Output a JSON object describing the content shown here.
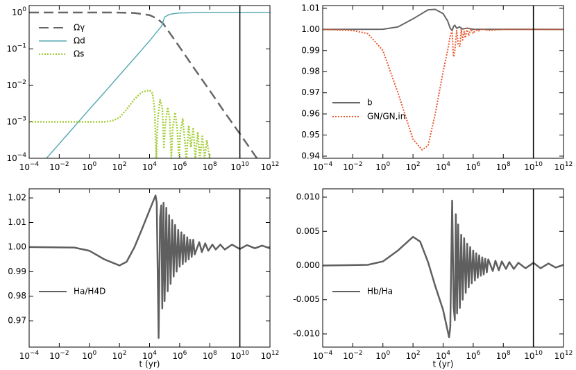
{
  "chart_data": [
    {
      "type": "line",
      "xlog": true,
      "ylog": true,
      "legend": "upper left",
      "vline": 10000000000,
      "xlim": [
        0.0001,
        1000000000000
      ],
      "ylim": [
        0.0001,
        1.55
      ],
      "xticks": [
        {
          "value": 0.0001,
          "label": "10",
          "power": "−4"
        },
        {
          "value": 0.01,
          "label": "10",
          "power": "−2"
        },
        {
          "value": 1,
          "label": "10",
          "power": "0"
        },
        {
          "value": 100,
          "label": "10",
          "power": "2"
        },
        {
          "value": 10000,
          "label": "10",
          "power": "4"
        },
        {
          "value": 1000000,
          "label": "10",
          "power": "6"
        },
        {
          "value": 100000000,
          "label": "10",
          "power": "8"
        },
        {
          "value": 10000000000,
          "label": "10",
          "power": "10"
        },
        {
          "value": 1000000000000,
          "label": "10",
          "power": "12"
        }
      ],
      "yticks": [
        {
          "value": 0.0001,
          "label": "10",
          "power": "−4"
        },
        {
          "value": 0.001,
          "label": "10",
          "power": "−3"
        },
        {
          "value": 0.01,
          "label": "10",
          "power": "−2"
        },
        {
          "value": 0.1,
          "label": "10",
          "power": "−1"
        },
        {
          "value": 1,
          "label": "10",
          "power": "0"
        }
      ],
      "series": [
        {
          "name": "Ωγ",
          "color": "#666666",
          "linestyle": "dashed",
          "linewidth": 2.5,
          "x": [
            0.0001,
            10,
            100,
            1000,
            10000,
            31600,
            79400,
            1000000,
            10000000,
            100000000,
            1000000000,
            10000000000,
            100000000000,
            316000000000
          ],
          "values": [
            1,
            1,
            0.995,
            0.97,
            0.85,
            0.68,
            0.5,
            0.112,
            0.028,
            0.0072,
            0.0018,
            0.00047,
            0.00012,
            6e-05
          ]
        },
        {
          "name": "Ωd",
          "color": "#5aacb4",
          "linestyle": "solid",
          "linewidth": 1.5,
          "x": [
            0.0001,
            0.001,
            0.01,
            0.1,
            1,
            10,
            100,
            1000,
            10000,
            31600,
            63000,
            100000,
            200000,
            400000,
            1000000,
            10000000,
            100000000,
            1000000000000
          ],
          "values": [
            2.9e-05,
            8.5e-05,
            0.00025,
            0.00074,
            0.0022,
            0.0064,
            0.019,
            0.056,
            0.166,
            0.3,
            0.42,
            0.75,
            0.88,
            0.93,
            0.97,
            0.99,
            1,
            1
          ]
        },
        {
          "name": "Ωs",
          "color": "#a5cf3a",
          "linestyle": "dotted",
          "linewidth": 2.5,
          "x": [
            0.0001,
            10,
            30,
            100,
            300,
            1000,
            3000,
            10000,
            16000,
            22000,
            28000,
            35000,
            50000,
            70000,
            90000,
            110000,
            160000,
            220000,
            280000,
            350000,
            500000,
            700000,
            900000,
            1100000,
            1600000,
            2200000,
            2800000,
            4000000,
            5600000,
            8000000,
            11000000,
            16000000,
            22000000,
            32000000,
            45000000,
            64000000,
            100000000
          ],
          "values": [
            0.001,
            0.001,
            0.00105,
            0.0013,
            0.0022,
            0.0042,
            0.0065,
            0.0074,
            0.006,
            0.002,
            0.0001,
            0.0012,
            0.004,
            0.0025,
            0.0002,
            0.0008,
            0.0025,
            0.0012,
            0.0001,
            0.0007,
            0.0018,
            0.0006,
            0.0001,
            0.0005,
            0.0012,
            0.0003,
            0.0001,
            0.0008,
            0.0002,
            0.0007,
            0.0001,
            0.0005,
            0.0001,
            0.0004,
            0.0001,
            0.0003,
            0.0001
          ]
        }
      ]
    },
    {
      "type": "line",
      "xlog": true,
      "ylog": false,
      "legend": "lower left",
      "vline": 10000000000,
      "xlim": [
        0.0001,
        1000000000000
      ],
      "ylim": [
        0.939,
        1.0113
      ],
      "xticks": [
        {
          "value": 0.0001,
          "label": "10",
          "power": "−4"
        },
        {
          "value": 0.01,
          "label": "10",
          "power": "−2"
        },
        {
          "value": 1,
          "label": "10",
          "power": "0"
        },
        {
          "value": 100,
          "label": "10",
          "power": "2"
        },
        {
          "value": 10000,
          "label": "10",
          "power": "4"
        },
        {
          "value": 1000000,
          "label": "10",
          "power": "6"
        },
        {
          "value": 100000000,
          "label": "10",
          "power": "8"
        },
        {
          "value": 10000000000,
          "label": "10",
          "power": "10"
        },
        {
          "value": 1000000000000,
          "label": "10",
          "power": "12"
        }
      ],
      "yticks": [
        0.94,
        0.95,
        0.96,
        0.97,
        0.98,
        0.99,
        {
          "value": 1,
          "label": "1.00"
        },
        1.01
      ],
      "series": [
        {
          "name": "b",
          "color": "#666666",
          "linestyle": "solid",
          "linewidth": 2,
          "x": [
            0.0001,
            1,
            10,
            100,
            1000,
            3000,
            10000,
            20000,
            30000,
            40000,
            50000,
            60000,
            80000,
            120000,
            200000,
            400000,
            1000000,
            1000000000000
          ],
          "values": [
            1,
            1.0001,
            1.0012,
            1.005,
            1.0093,
            1.0095,
            1.0075,
            1.004,
            1.0005,
            0.9995,
            1.0015,
            1.002,
            1.0005,
            1.0012,
            1.0002,
            1.0006,
            1.0001,
            1
          ]
        },
        {
          "name": "GN/GN,in",
          "color": "#e9572b",
          "linestyle": "dotted",
          "linewidth": 2,
          "x": [
            0.0001,
            0.01,
            0.1,
            1,
            10,
            100,
            400,
            1000,
            3000,
            10000,
            20000,
            30000,
            40000,
            45000,
            50000,
            60000,
            80000,
            100000,
            130000,
            160000,
            200000,
            250000,
            300000,
            400000,
            500000,
            700000,
            1000000,
            1500000,
            2000000,
            4000000,
            10000000,
            100000000,
            1000000000000
          ],
          "values": [
            1,
            0.9995,
            0.998,
            0.99,
            0.97,
            0.948,
            0.943,
            0.945,
            0.96,
            0.98,
            0.99,
            0.997,
            0.9995,
            0.991,
            0.987,
            0.99,
            0.9995,
            0.993,
            0.992,
            1,
            0.995,
            0.999,
            0.996,
            1.0005,
            0.997,
            1.0003,
            0.998,
            1.0003,
            0.999,
            1.0002,
            0.9995,
            1,
            1
          ]
        }
      ]
    },
    {
      "type": "line",
      "xlog": true,
      "ylog": false,
      "legend": "lower left",
      "vline": 10000000000,
      "xlabel": "t (yr)",
      "xlim": [
        0.0001,
        1000000000000
      ],
      "ylim": [
        0.9593,
        1.0237
      ],
      "xticks": [
        {
          "value": 0.0001,
          "label": "10",
          "power": "−4"
        },
        {
          "value": 0.01,
          "label": "10",
          "power": "−2"
        },
        {
          "value": 1,
          "label": "10",
          "power": "0"
        },
        {
          "value": 100,
          "label": "10",
          "power": "2"
        },
        {
          "value": 10000,
          "label": "10",
          "power": "4"
        },
        {
          "value": 1000000,
          "label": "10",
          "power": "6"
        },
        {
          "value": 100000000,
          "label": "10",
          "power": "8"
        },
        {
          "value": 10000000000,
          "label": "10",
          "power": "10"
        },
        {
          "value": 1000000000000,
          "label": "10",
          "power": "12"
        }
      ],
      "yticks": [
        0.97,
        0.98,
        0.99,
        {
          "value": 1,
          "label": "1.00"
        },
        1.01,
        1.02
      ],
      "series": [
        {
          "name": "Ha/H4D",
          "color": "#5f5f5f",
          "linestyle": "solid",
          "linewidth": 2.5,
          "x": [
            0.0001,
            0.1,
            1,
            10,
            100,
            300,
            1000,
            3000,
            10000,
            25000,
            30000,
            40000,
            50000,
            60000,
            70000,
            85000,
            100000,
            130000,
            160000,
            200000,
            250000,
            320000,
            400000,
            500000,
            630000,
            800000,
            1000000,
            1300000,
            1600000,
            2000000,
            2500000,
            3200000,
            4000000,
            5000000,
            6300000,
            8000000,
            10000000,
            20000000,
            30000000,
            50000000,
            80000000,
            150000000,
            250000000,
            500000000,
            1000000000,
            3000000000,
            10000000000,
            30000000000,
            100000000000,
            300000000000,
            1000000000000
          ],
          "values": [
            1,
            0.9998,
            0.9985,
            0.995,
            0.9925,
            0.994,
            1,
            1.007,
            1.015,
            1.021,
            1.018,
            0.963,
            1.012,
            1.017,
            0.975,
            1.018,
            0.978,
            1.016,
            0.982,
            1.013,
            0.985,
            1.011,
            0.988,
            1.009,
            0.99,
            1.007,
            0.992,
            1.006,
            0.993,
            1.005,
            0.994,
            1.004,
            0.995,
            1.003,
            0.996,
            1.003,
            0.997,
            1.002,
            0.998,
            1.0015,
            0.9985,
            1.001,
            0.999,
            1.001,
            0.999,
            1.001,
            0.9992,
            1.0008,
            0.9995,
            1.0006,
            0.9995
          ]
        }
      ]
    },
    {
      "type": "line",
      "xlog": true,
      "ylog": false,
      "legend": "lower left",
      "vline": 10000000000,
      "xlabel": "t (yr)",
      "xlim": [
        0.0001,
        1000000000000
      ],
      "ylim": [
        -0.01193,
        0.01122
      ],
      "xticks": [
        {
          "value": 0.0001,
          "label": "10",
          "power": "−4"
        },
        {
          "value": 0.01,
          "label": "10",
          "power": "−2"
        },
        {
          "value": 1,
          "label": "10",
          "power": "0"
        },
        {
          "value": 100,
          "label": "10",
          "power": "2"
        },
        {
          "value": 10000,
          "label": "10",
          "power": "4"
        },
        {
          "value": 1000000,
          "label": "10",
          "power": "6"
        },
        {
          "value": 100000000,
          "label": "10",
          "power": "8"
        },
        {
          "value": 10000000000,
          "label": "10",
          "power": "10"
        },
        {
          "value": 1000000000000,
          "label": "10",
          "power": "12"
        }
      ],
      "yticks": [
        {
          "value": -0.01,
          "label": "-0.010"
        },
        {
          "value": -0.005,
          "label": "-0.005"
        },
        {
          "value": 0,
          "label": "0.000"
        },
        0.005,
        {
          "value": 0.01,
          "label": "0.010"
        }
      ],
      "series": [
        {
          "name": "Hb/Ha",
          "color": "#5f5f5f",
          "linestyle": "solid",
          "linewidth": 2.5,
          "x": [
            0.0001,
            0.1,
            1,
            10,
            100,
            300,
            1000,
            3000,
            10000,
            25000,
            30000,
            40000,
            50000,
            60000,
            70000,
            85000,
            100000,
            130000,
            160000,
            200000,
            250000,
            320000,
            400000,
            500000,
            630000,
            800000,
            1000000,
            1300000,
            1600000,
            2000000,
            2500000,
            3200000,
            4000000,
            5000000,
            6300000,
            8000000,
            10000000,
            20000000,
            30000000,
            50000000,
            80000000,
            150000000,
            250000000,
            500000000,
            1000000000,
            3000000000,
            10000000000,
            30000000000,
            100000000000,
            300000000000,
            1000000000000
          ],
          "values": [
            0,
            0.0001,
            0.0006,
            0.0022,
            0.0042,
            0.0035,
            0.0005,
            -0.003,
            -0.0065,
            -0.0105,
            -0.009,
            0.0095,
            -0.006,
            -0.008,
            0.0075,
            -0.007,
            0.006,
            -0.0062,
            0.0045,
            -0.005,
            0.004,
            -0.004,
            0.0032,
            -0.0032,
            0.0027,
            -0.0026,
            0.0022,
            -0.0022,
            0.0018,
            -0.0018,
            0.0015,
            -0.0015,
            0.0012,
            -0.0013,
            0.001,
            -0.001,
            0.0009,
            -0.0008,
            0.0007,
            -0.0007,
            0.0006,
            -0.0005,
            0.0005,
            -0.0005,
            0.0004,
            -0.0004,
            0.0004,
            -0.0004,
            0.0003,
            -0.0003,
            0.0001
          ]
        }
      ]
    }
  ]
}
